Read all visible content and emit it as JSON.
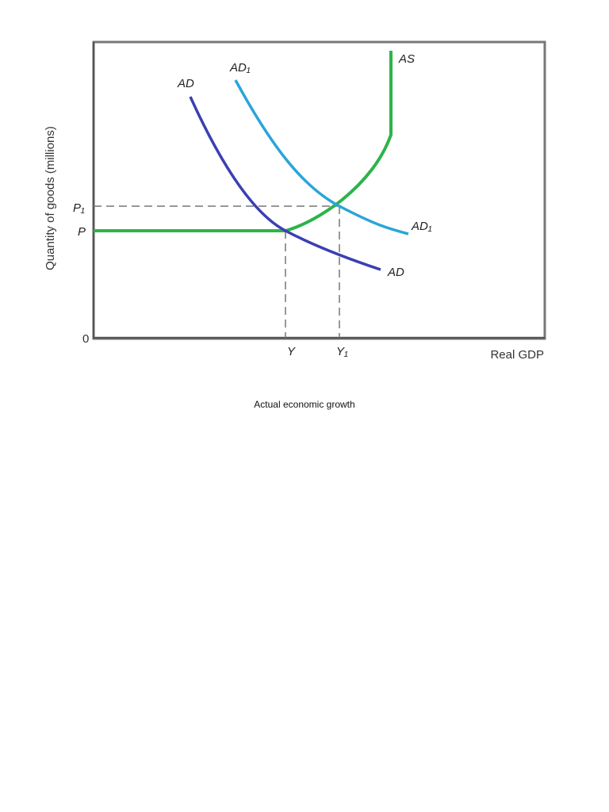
{
  "diagram": {
    "y_axis_label": "Quantity of goods (millions)",
    "x_axis_label": "Real GDP",
    "y_labels": [
      "P₁",
      "P",
      "0"
    ],
    "x_labels": [
      "Y",
      "Y₁"
    ],
    "curves": [
      {
        "start_label": "AD",
        "end_label": "AD"
      },
      {
        "start_label": "AD₁",
        "end_label": "AD₁"
      },
      {
        "start_label": "AS"
      }
    ]
  },
  "caption": "Actual economic growth"
}
